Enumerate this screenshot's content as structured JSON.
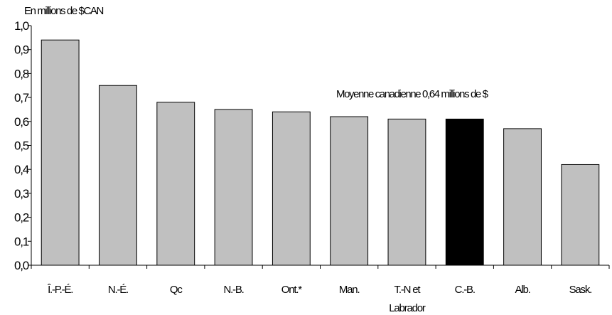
{
  "chart_data": {
    "type": "bar",
    "ylabel": "En millions de $CAN",
    "annotation": "Moyenne canadienne 0,64 millions de $",
    "categories": [
      "Î.-P.-É.",
      "N.-É.",
      "Qc",
      "N.-B.",
      "Ont.*",
      "Man.",
      "T.-N et",
      "C.-B.",
      "Alb.",
      "Sask."
    ],
    "category_sublabels": [
      "",
      "",
      "",
      "",
      "",
      "",
      "Labrador",
      "",
      "",
      ""
    ],
    "values": [
      0.94,
      0.75,
      0.68,
      0.65,
      0.64,
      0.62,
      0.61,
      0.61,
      0.57,
      0.42
    ],
    "bar_colors": [
      "#c0c0c0",
      "#c0c0c0",
      "#c0c0c0",
      "#c0c0c0",
      "#c0c0c0",
      "#c0c0c0",
      "#c0c0c0",
      "#000000",
      "#c0c0c0",
      "#c0c0c0"
    ],
    "ylim": [
      0,
      1.0
    ],
    "yticks": [
      "0,0",
      "0,1",
      "0,2",
      "0,3",
      "0,4",
      "0,5",
      "0,6",
      "0,7",
      "0,8",
      "0,9",
      "1,0"
    ],
    "grid": false,
    "legend": "none"
  }
}
